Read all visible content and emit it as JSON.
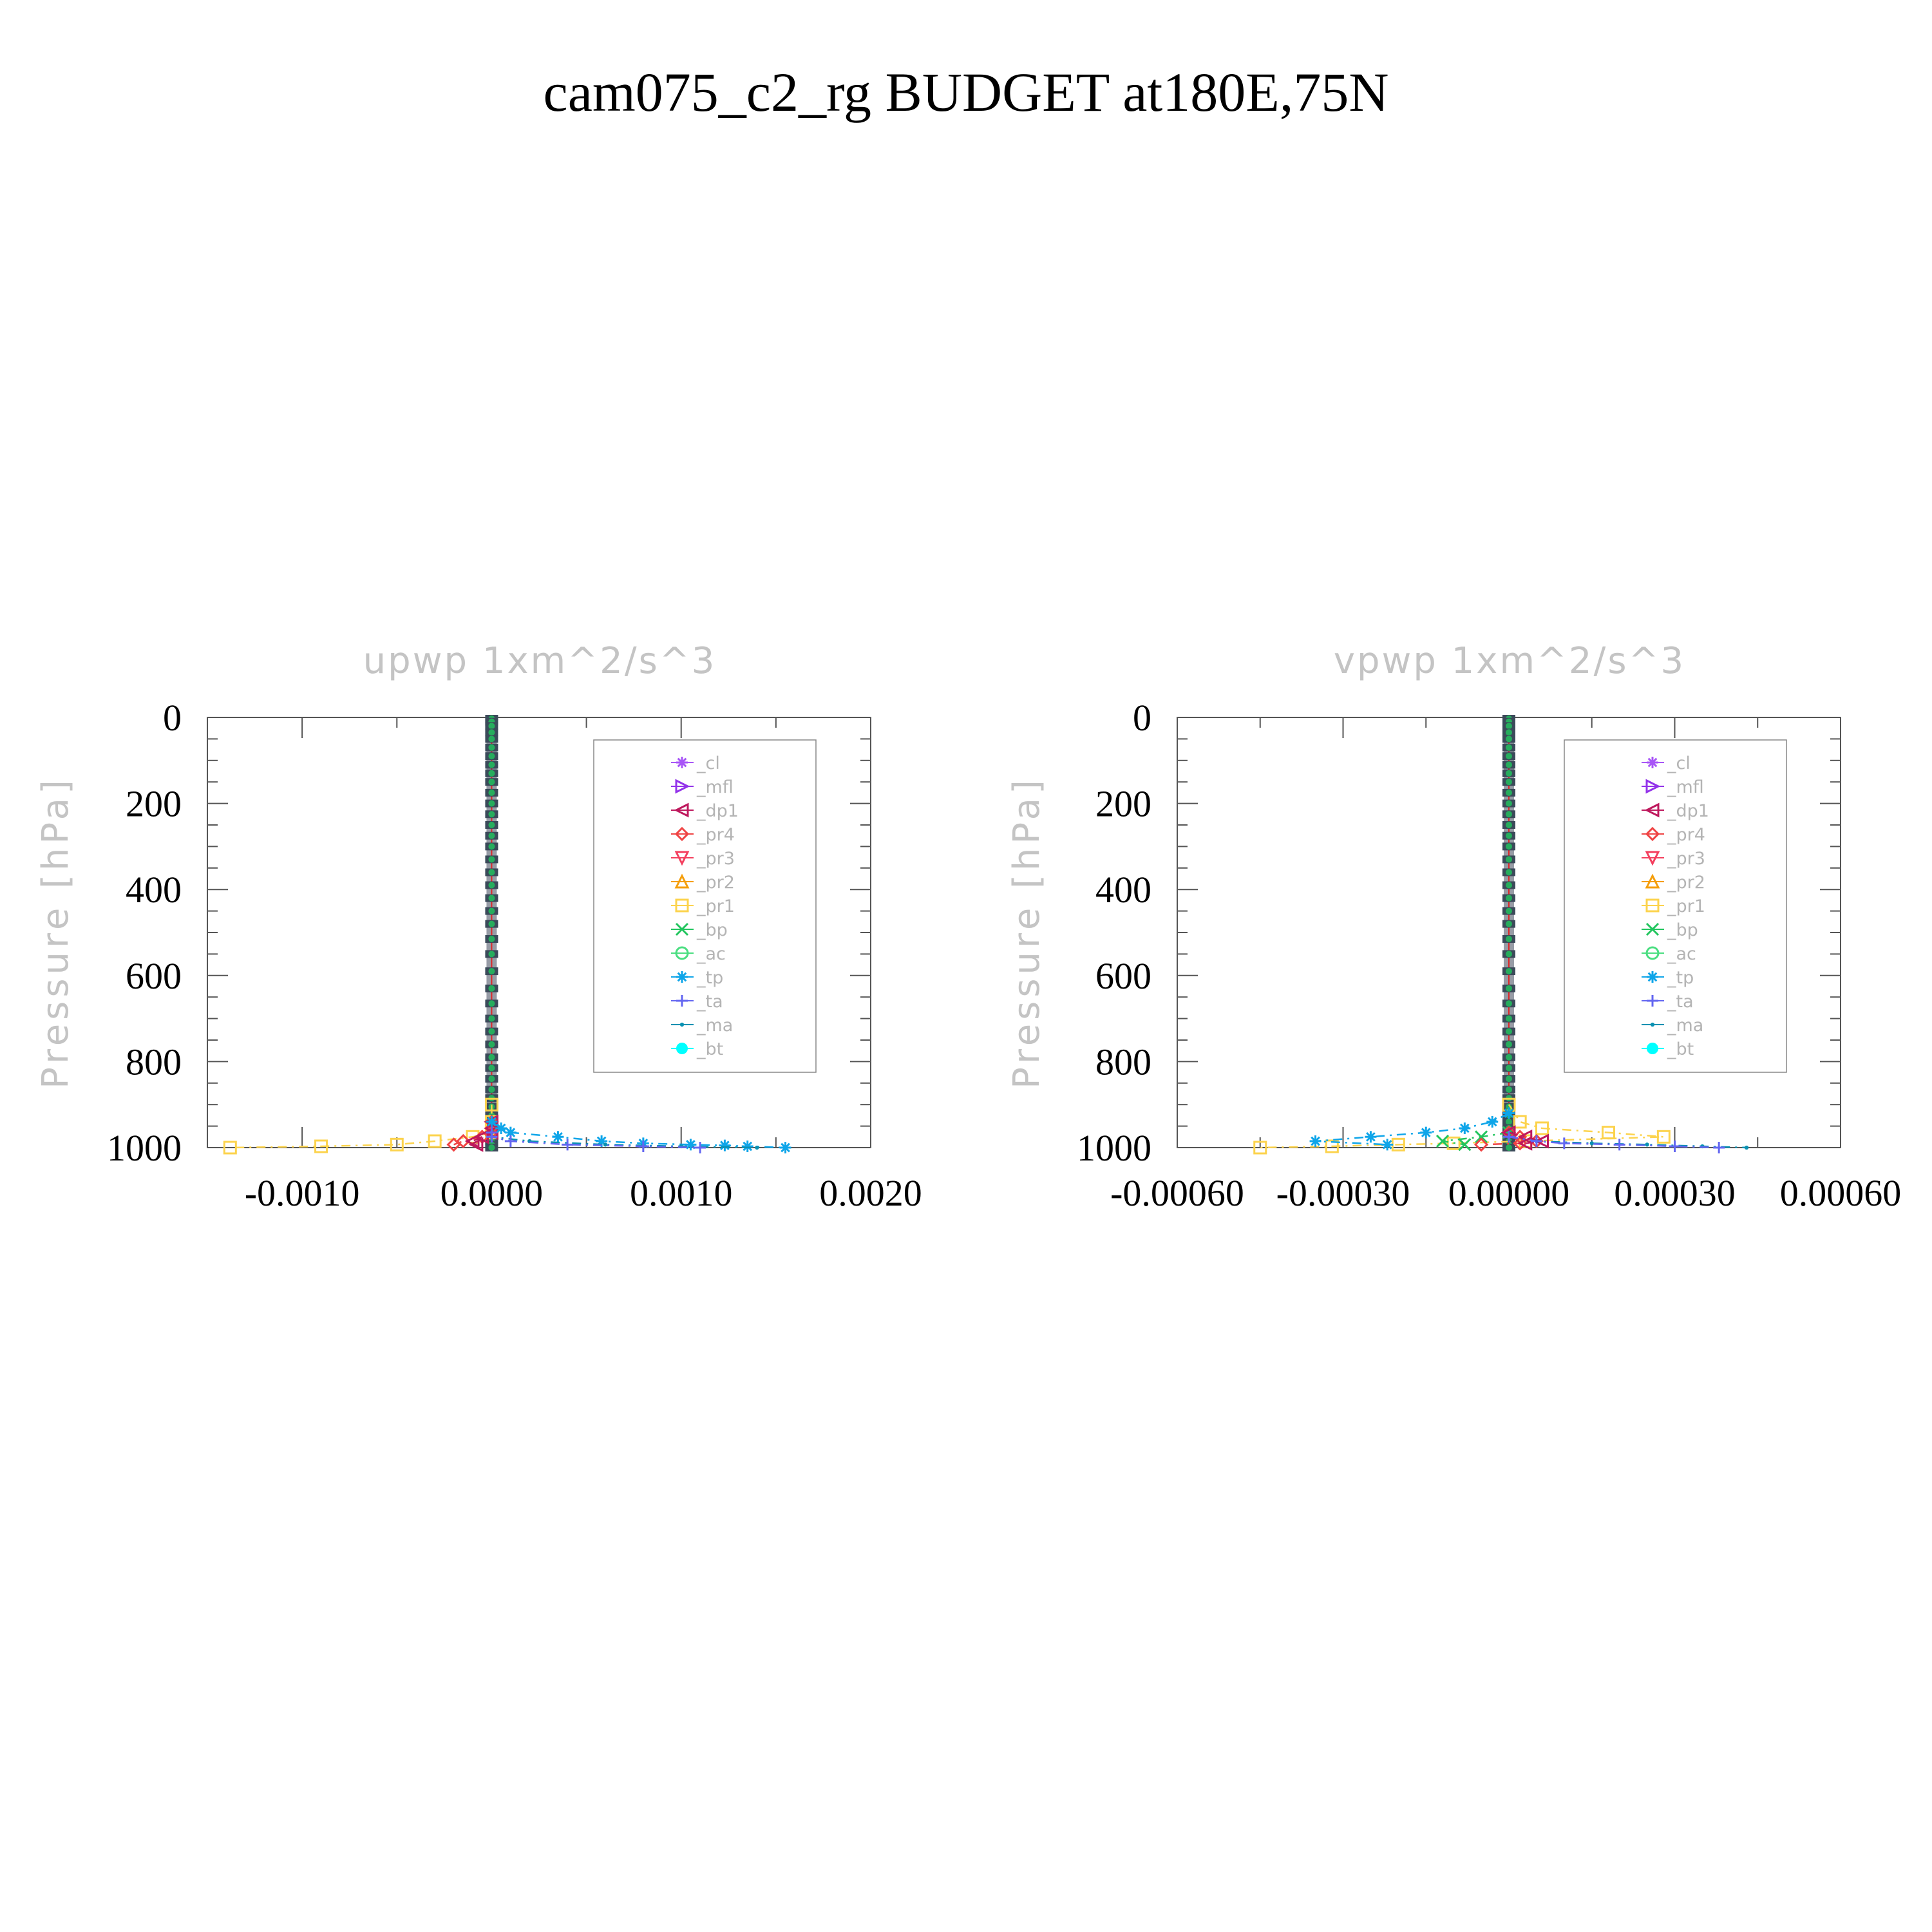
{
  "title": "cam075_c2_rg  BUDGET at180E,75N",
  "legend": [
    {
      "label": "_cl",
      "color": "#a855f7",
      "marker": "star"
    },
    {
      "label": "_mfl",
      "color": "#9333ea",
      "marker": "tri-right"
    },
    {
      "label": "_dp1",
      "color": "#be185d",
      "marker": "tri-left"
    },
    {
      "label": "_pr4",
      "color": "#ef4444",
      "marker": "diamond"
    },
    {
      "label": "_pr3",
      "color": "#f43f5e",
      "marker": "tri-down"
    },
    {
      "label": "_pr2",
      "color": "#f59e0b",
      "marker": "tri-up"
    },
    {
      "label": "_pr1",
      "color": "#fcd34d",
      "marker": "square"
    },
    {
      "label": "_bp",
      "color": "#22c55e",
      "marker": "x"
    },
    {
      "label": "_ac",
      "color": "#4ade80",
      "marker": "circle"
    },
    {
      "label": "_tp",
      "color": "#0ea5e9",
      "marker": "asterisk"
    },
    {
      "label": "_ta",
      "color": "#6366f1",
      "marker": "plus"
    },
    {
      "label": "_ma",
      "color": "#0891b2",
      "marker": "dot"
    },
    {
      "label": "_bt",
      "color": "#00ffff",
      "marker": "filled-circle"
    }
  ],
  "chart_data": [
    {
      "type": "line",
      "title": "upwp    1xm^2/s^3",
      "ylabel": "Pressure [hPa]",
      "xlim": [
        -0.0015,
        0.002
      ],
      "ylim": [
        1000,
        0
      ],
      "xticks": [
        -0.001,
        0.0,
        0.001,
        0.002
      ],
      "xtick_labels": [
        "-0.0010",
        "0.0000",
        "0.0010",
        "0.0020"
      ],
      "yticks": [
        0,
        200,
        400,
        600,
        800,
        1000
      ],
      "ytick_labels": [
        "0",
        "200",
        "400",
        "600",
        "800",
        "1000"
      ],
      "levels": [
        3,
        10,
        20,
        35,
        50,
        70,
        90,
        110,
        130,
        150,
        175,
        200,
        225,
        250,
        275,
        300,
        330,
        360,
        390,
        420,
        450,
        480,
        515,
        550,
        590,
        630,
        665,
        700,
        730,
        760,
        790,
        815,
        840,
        865,
        885,
        905,
        925,
        940,
        955,
        965,
        975,
        985,
        993,
        1000
      ],
      "series": [
        {
          "name": "_pr1",
          "x": [
            0,
            0,
            0,
            0,
            -0.0001,
            -0.0003,
            -0.0005,
            -0.0009,
            -0.00138
          ],
          "y": [
            900,
            940,
            955,
            965,
            975,
            985,
            993,
            997,
            1000
          ]
        },
        {
          "name": "_pr4",
          "x": [
            0,
            0,
            0,
            -5e-05,
            -0.00015,
            -0.0002
          ],
          "y": [
            940,
            955,
            965,
            975,
            985,
            993
          ]
        },
        {
          "name": "_dp1",
          "x": [
            0,
            0,
            0,
            -5e-05,
            -0.0001,
            -8e-05
          ],
          "y": [
            940,
            955,
            965,
            975,
            985,
            993
          ]
        },
        {
          "name": "_tp",
          "x": [
            0,
            5e-05,
            0.0001,
            0.00035,
            0.00058,
            0.0008,
            0.00105,
            0.00123,
            0.00135,
            0.00155
          ],
          "y": [
            940,
            955,
            965,
            975,
            985,
            990,
            993,
            995,
            997,
            1000
          ]
        },
        {
          "name": "_ma",
          "x": [
            0,
            0,
            0.0002,
            0.0006,
            0.001,
            0.0014
          ],
          "y": [
            965,
            975,
            985,
            993,
            997,
            1000
          ]
        },
        {
          "name": "_ta",
          "x": [
            0,
            0,
            0.0001,
            0.0004,
            0.0008,
            0.0011
          ],
          "y": [
            965,
            975,
            985,
            993,
            997,
            1000
          ]
        }
      ]
    },
    {
      "type": "line",
      "title": "vpwp    1xm^2/s^3",
      "ylabel": "Pressure [hPa]",
      "xlim": [
        -0.0006,
        0.0006
      ],
      "ylim": [
        1000,
        0
      ],
      "xticks": [
        -0.0006,
        -0.0003,
        0.0,
        0.0003,
        0.0006
      ],
      "xtick_labels": [
        "-0.00060",
        "-0.00030",
        "0.00000",
        "0.00030",
        "0.00060"
      ],
      "yticks": [
        0,
        200,
        400,
        600,
        800,
        1000
      ],
      "ytick_labels": [
        "0",
        "200",
        "400",
        "600",
        "800",
        "1000"
      ],
      "levels": [
        3,
        10,
        20,
        35,
        50,
        70,
        90,
        110,
        130,
        150,
        175,
        200,
        225,
        250,
        275,
        300,
        330,
        360,
        390,
        420,
        450,
        480,
        515,
        550,
        590,
        630,
        665,
        700,
        730,
        760,
        790,
        815,
        840,
        865,
        885,
        905,
        925,
        940,
        955,
        965,
        975,
        985,
        993,
        1000
      ],
      "series": [
        {
          "name": "_pr1",
          "x": [
            0,
            2e-05,
            6e-05,
            0.00018,
            0.00028,
            3e-05,
            -0.0001,
            -0.0002,
            -0.00032,
            -0.00045
          ],
          "y": [
            900,
            940,
            955,
            965,
            975,
            985,
            990,
            993,
            997,
            1000
          ]
        },
        {
          "name": "_tp",
          "x": [
            0,
            -3e-05,
            -8e-05,
            -0.00015,
            -0.00025,
            -0.00035,
            -0.00022
          ],
          "y": [
            920,
            940,
            955,
            965,
            975,
            985,
            993
          ]
        },
        {
          "name": "_bp",
          "x": [
            0,
            -5e-05,
            -0.00012,
            -8e-05
          ],
          "y": [
            965,
            975,
            985,
            993
          ]
        },
        {
          "name": "_pr4",
          "x": [
            0,
            2e-05,
            5e-05,
            2e-05,
            -5e-05
          ],
          "y": [
            965,
            975,
            985,
            990,
            993
          ]
        },
        {
          "name": "_dp1",
          "x": [
            0,
            3e-05,
            6e-05,
            3e-05
          ],
          "y": [
            965,
            975,
            985,
            990
          ]
        },
        {
          "name": "_ma",
          "x": [
            0,
            5e-05,
            0.00015,
            0.00025,
            0.00035,
            0.00043
          ],
          "y": [
            975,
            985,
            990,
            993,
            997,
            1000
          ]
        },
        {
          "name": "_ta",
          "x": [
            0,
            5e-05,
            0.0001,
            0.0002,
            0.0003,
            0.00038
          ],
          "y": [
            975,
            985,
            990,
            993,
            997,
            1000
          ]
        }
      ]
    }
  ]
}
